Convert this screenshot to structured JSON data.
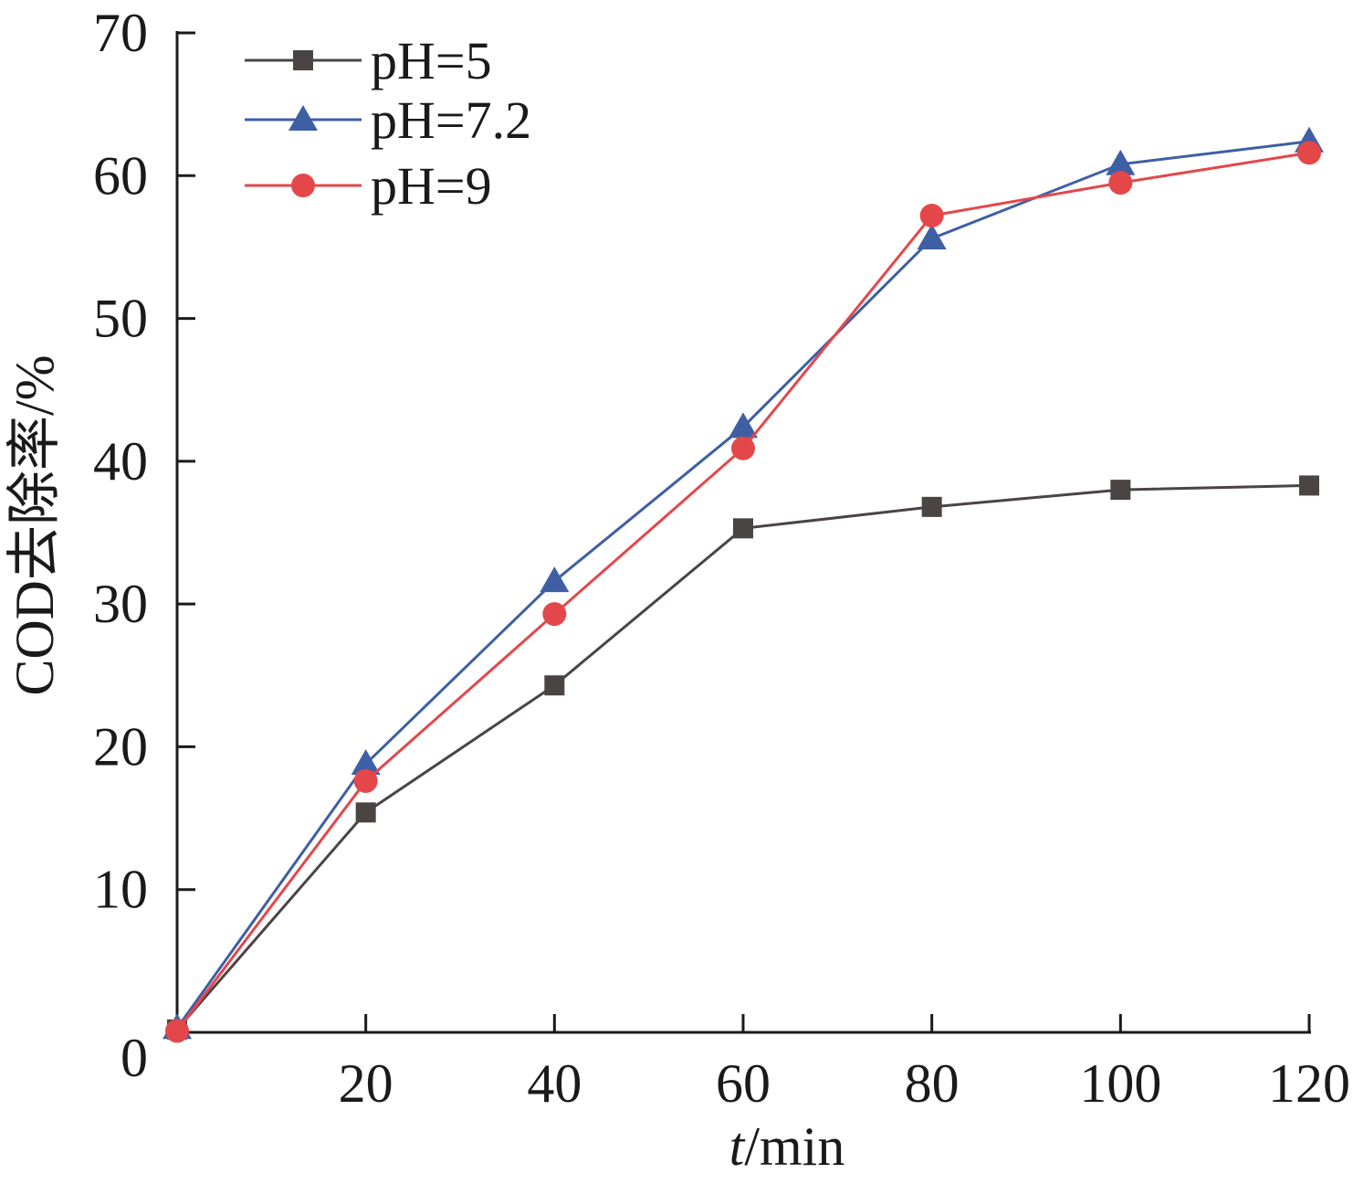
{
  "chart_data": {
    "type": "line",
    "title": "",
    "xlabel_italic": "t",
    "xlabel_rest": "/min",
    "ylabel": "COD去除率/%",
    "x": [
      0,
      20,
      40,
      60,
      80,
      100,
      120
    ],
    "xlim": [
      0,
      120
    ],
    "ylim": [
      0,
      70
    ],
    "x_ticks": [
      "20",
      "40",
      "60",
      "80",
      "100",
      "120"
    ],
    "x_tick_values": [
      20,
      40,
      60,
      80,
      100,
      120
    ],
    "y_ticks": [
      "0",
      "10",
      "20",
      "30",
      "40",
      "50",
      "60",
      "70"
    ],
    "y_tick_values": [
      0,
      10,
      20,
      30,
      40,
      50,
      60,
      70
    ],
    "grid": false,
    "legend_position": "top-left",
    "series": [
      {
        "name": "pH=5",
        "marker": "square",
        "color": "#4a4443",
        "values": [
          0.2,
          15.4,
          24.3,
          35.3,
          36.8,
          38.0,
          38.3
        ]
      },
      {
        "name": "pH=7.2",
        "marker": "triangle",
        "color": "#3e5fa3",
        "values": [
          0.3,
          18.8,
          31.6,
          42.4,
          55.6,
          60.8,
          62.4
        ]
      },
      {
        "name": "pH=9",
        "marker": "circle",
        "color": "#e4474a",
        "values": [
          0.1,
          17.6,
          29.3,
          40.9,
          57.2,
          59.5,
          61.6
        ]
      }
    ]
  }
}
